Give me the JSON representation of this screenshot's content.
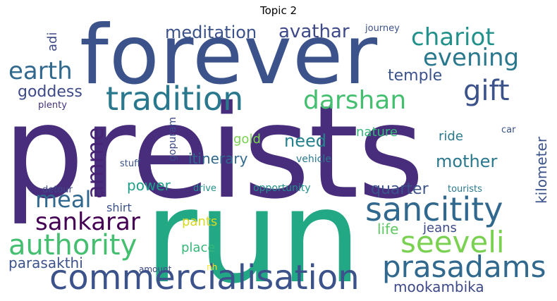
{
  "title": "Topic 2",
  "words": {
    "preists": {
      "text": "preists",
      "color": "#472d7b"
    },
    "run": {
      "text": "run",
      "color": "#22a884"
    },
    "forever": {
      "text": "forever",
      "color": "#3b528b"
    },
    "commercialisation": {
      "text": "commercialisation",
      "color": "#3b528b"
    },
    "tradition": {
      "text": "tradition",
      "color": "#2a788e"
    },
    "sancitity": {
      "text": "sancitity",
      "color": "#31688e"
    },
    "prasadams": {
      "text": "prasadams",
      "color": "#31688e"
    },
    "seeveli": {
      "text": "seeveli",
      "color": "#7ad151"
    },
    "authority": {
      "text": "authority",
      "color": "#44bf70"
    },
    "chariot": {
      "text": "chariot",
      "color": "#21918c"
    },
    "darshan": {
      "text": "darshan",
      "color": "#44bf70"
    },
    "gift": {
      "text": "gift",
      "color": "#3b528b"
    },
    "earth": {
      "text": "earth",
      "color": "#31688e"
    },
    "evening": {
      "text": "evening",
      "color": "#2a788e"
    },
    "sankarar": {
      "text": "sankarar",
      "color": "#440154"
    },
    "meal": {
      "text": "meal",
      "color": "#31688e"
    },
    "meditation": {
      "text": "meditation",
      "color": "#3b528b"
    },
    "avathar": {
      "text": "avathar",
      "color": "#3e4989"
    },
    "amme": {
      "text": "amme",
      "color": "#482475"
    },
    "goddess": {
      "text": "goddess",
      "color": "#3e4989"
    },
    "temple": {
      "text": "temple",
      "color": "#3b528b"
    },
    "parasakthi": {
      "text": "parasakthi",
      "color": "#3b528b"
    },
    "mookambika": {
      "text": "mookambika",
      "color": "#3e4989"
    },
    "kilometer": {
      "text": "kilometer",
      "color": "#3b528b"
    },
    "mother": {
      "text": "mother",
      "color": "#2a788e"
    },
    "quarter": {
      "text": "quarter",
      "color": "#3b528b"
    },
    "need": {
      "text": "need",
      "color": "#26828e"
    },
    "itinerary": {
      "text": "itinerary",
      "color": "#31688e"
    },
    "power": {
      "text": "power",
      "color": "#1f9e89"
    },
    "life": {
      "text": "life",
      "color": "#5ec962"
    },
    "jeans": {
      "text": "jeans",
      "color": "#3e4989"
    },
    "place": {
      "text": "place",
      "color": "#35b779"
    },
    "gold": {
      "text": "gold",
      "color": "#7ad151"
    },
    "nature": {
      "text": "nature",
      "color": "#35b779"
    },
    "ride": {
      "text": "ride",
      "color": "#2a788e"
    },
    "shirt": {
      "text": "shirt",
      "color": "#3b528b"
    },
    "pants": {
      "text": "pants",
      "color": "#d6d91e"
    },
    "gopuram": {
      "text": "gopuram",
      "color": "#3e4989"
    },
    "adi": {
      "text": "adi",
      "color": "#3e4989"
    },
    "journey": {
      "text": "journey",
      "color": "#3b528b"
    },
    "plenty": {
      "text": "plenty",
      "color": "#46337e"
    },
    "car": {
      "text": "car",
      "color": "#3b528b"
    },
    "stuff": {
      "text": "stuff",
      "color": "#3b528b"
    },
    "vehicle": {
      "text": "vehicle",
      "color": "#2a788e"
    },
    "detour": {
      "text": "detour",
      "color": "#3e4989"
    },
    "drive": {
      "text": "drive",
      "color": "#21918c"
    },
    "opportunity": {
      "text": "opportunity",
      "color": "#21918c"
    },
    "tourists": {
      "text": "tourists",
      "color": "#2a788e"
    },
    "amount": {
      "text": "amount",
      "color": "#3e4989"
    },
    "nh": {
      "text": "nh",
      "color": "#fde725"
    }
  }
}
